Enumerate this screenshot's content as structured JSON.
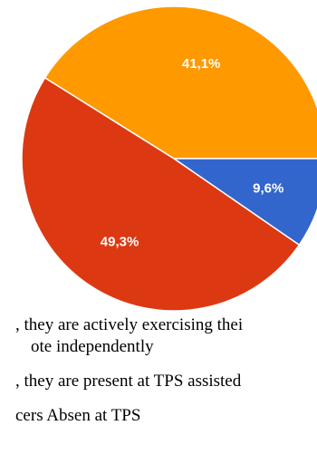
{
  "chart_data": {
    "type": "pie",
    "slices": [
      {
        "label": "41,1%",
        "value": 41.1,
        "color": "#FF9900"
      },
      {
        "label": "9,6%",
        "value": 9.6,
        "color": "#3366CC"
      },
      {
        "label": "49,3%",
        "value": 49.3,
        "color": "#DC3912"
      }
    ],
    "legend_text": [
      ", they are actively exercising thei",
      "ote independently",
      ", they are present at TPS assisted",
      "cers Absen at TPS"
    ]
  }
}
